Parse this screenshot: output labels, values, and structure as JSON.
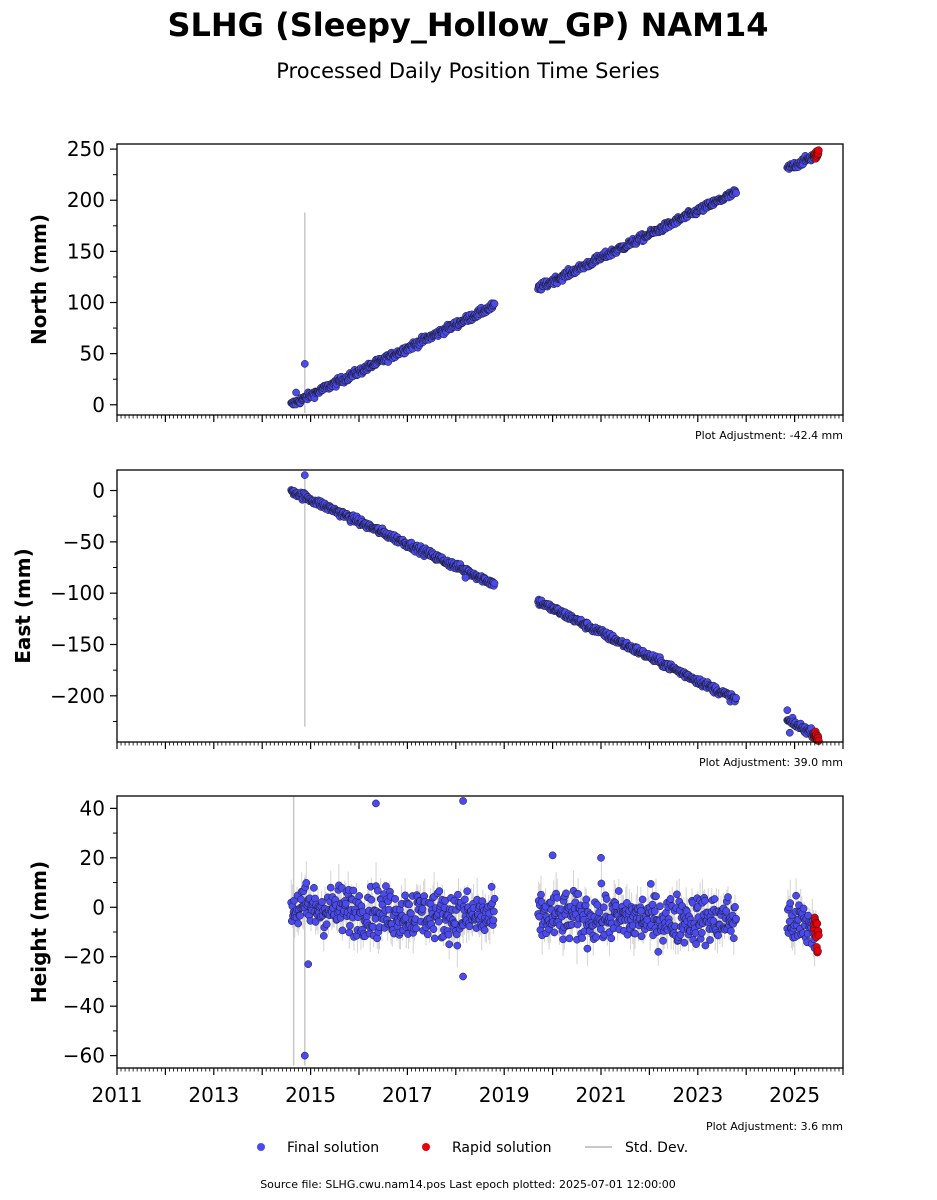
{
  "title": "SLHG (Sleepy_Hollow_GP) NAM14",
  "subtitle": "Processed Daily Position Time Series",
  "footer": "Source file: SLHG.cwu.nam14.pos  Last epoch plotted: 2025-07-01 12:00:00",
  "legend": {
    "final_label": "Final solution",
    "rapid_label": "Rapid solution",
    "std_label": "Std. Dev."
  },
  "colors": {
    "final": "#4a4af0",
    "rapid": "#e8000b",
    "std": "#c8c8c8",
    "marker_edge": "#1a1a1a"
  },
  "chart_data": [
    {
      "type": "scatter",
      "ylabel": "North (mm)",
      "xlim": [
        2011,
        2026
      ],
      "ylim": [
        -10,
        255
      ],
      "yticks": [
        0,
        50,
        100,
        150,
        200,
        250
      ],
      "xticks": [
        2011,
        2013,
        2015,
        2017,
        2019,
        2021,
        2023,
        2025
      ],
      "adjustment": "Plot Adjustment: -42.4 mm",
      "segments": [
        {
          "series": "final",
          "start": 2014.6,
          "end": 2018.8,
          "y_start": 0,
          "y_end": 97
        },
        {
          "series": "final",
          "start": 2019.7,
          "end": 2023.8,
          "y_start": 114,
          "y_end": 208
        },
        {
          "series": "final",
          "start": 2024.85,
          "end": 2025.45,
          "y_start": 231,
          "y_end": 244
        },
        {
          "series": "rapid",
          "start": 2025.4,
          "end": 2025.5,
          "y_start": 243,
          "y_end": 246
        }
      ],
      "scatter": 2.5,
      "outliers": [
        {
          "x": 2014.88,
          "y": 40
        },
        {
          "x": 2014.7,
          "y": 12
        }
      ],
      "std_spikes": [
        {
          "x": 2014.88,
          "y_low": -8,
          "y_high": 188
        }
      ]
    },
    {
      "type": "scatter",
      "ylabel": "East (mm)",
      "xlim": [
        2011,
        2026
      ],
      "ylim": [
        -245,
        20
      ],
      "yticks": [
        0,
        -50,
        -100,
        -150,
        -200
      ],
      "xticks": [
        2011,
        2013,
        2015,
        2017,
        2019,
        2021,
        2023,
        2025
      ],
      "adjustment": "Plot Adjustment: 39.0 mm",
      "segments": [
        {
          "series": "final",
          "start": 2014.6,
          "end": 2018.8,
          "y_start": 0,
          "y_end": -91
        },
        {
          "series": "final",
          "start": 2019.7,
          "end": 2023.8,
          "y_start": -108,
          "y_end": -204
        },
        {
          "series": "final",
          "start": 2024.85,
          "end": 2025.45,
          "y_start": -224,
          "y_end": -238
        },
        {
          "series": "rapid",
          "start": 2025.4,
          "end": 2025.5,
          "y_start": -238,
          "y_end": -242
        }
      ],
      "scatter": 2.5,
      "outliers": [
        {
          "x": 2014.88,
          "y": 15
        },
        {
          "x": 2024.85,
          "y": -214
        },
        {
          "x": 2024.9,
          "y": -236
        },
        {
          "x": 2018.2,
          "y": -85
        }
      ],
      "std_spikes": [
        {
          "x": 2014.88,
          "y_low": -230,
          "y_high": 18
        }
      ]
    },
    {
      "type": "scatter",
      "ylabel": "Height (mm)",
      "xlim": [
        2011,
        2026
      ],
      "ylim": [
        -65,
        45
      ],
      "yticks": [
        40,
        20,
        0,
        -20,
        -40,
        -60
      ],
      "xticks": [
        2011,
        2013,
        2015,
        2017,
        2019,
        2021,
        2023,
        2025
      ],
      "adjustment": "Plot Adjustment: 3.6 mm",
      "segments": [
        {
          "series": "final",
          "start": 2014.6,
          "end": 2018.8,
          "y_start": 0,
          "y_end": -4
        },
        {
          "series": "final",
          "start": 2019.7,
          "end": 2023.8,
          "y_start": -4,
          "y_end": -5
        },
        {
          "series": "final",
          "start": 2024.85,
          "end": 2025.45,
          "y_start": -5,
          "y_end": -9
        },
        {
          "series": "rapid",
          "start": 2025.4,
          "end": 2025.5,
          "y_start": -9,
          "y_end": -14
        }
      ],
      "scatter": 7,
      "outliers": [
        {
          "x": 2016.35,
          "y": 42
        },
        {
          "x": 2018.15,
          "y": 43
        },
        {
          "x": 2014.88,
          "y": -60
        },
        {
          "x": 2014.95,
          "y": -23
        },
        {
          "x": 2018.15,
          "y": -28
        },
        {
          "x": 2020.0,
          "y": 21
        },
        {
          "x": 2021.0,
          "y": 20
        }
      ],
      "std_spikes": [
        {
          "x": 2014.65,
          "y_low": -64,
          "y_high": 45
        },
        {
          "x": 2014.88,
          "y_low": -64,
          "y_high": 12
        }
      ]
    }
  ]
}
